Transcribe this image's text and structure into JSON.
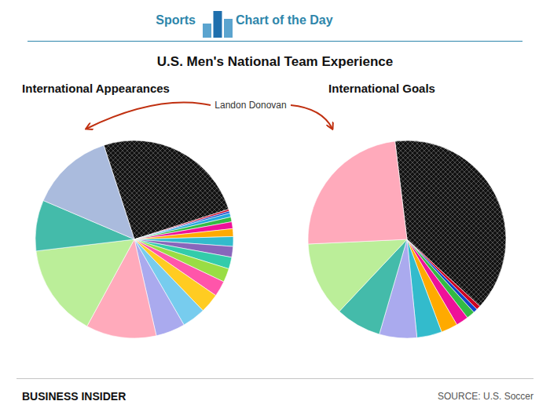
{
  "title": "U.S. Men's National Team Experience",
  "header": [
    "Sports",
    "Chart of the Day"
  ],
  "annotation": "Landon Donovan",
  "brand": "BUSINESS INSIDER",
  "source": "SOURCE: U.S. Soccer",
  "chart_data": [
    {
      "type": "pie",
      "title": "International Appearances",
      "values": [
        157,
        2,
        2,
        4,
        5,
        7,
        8,
        10,
        11,
        12,
        14,
        16,
        20,
        24,
        30,
        72,
        95,
        52,
        85
      ],
      "colors": [
        "#111111",
        "#cc0022",
        "#1144cc",
        "#22aadd",
        "#33bb44",
        "#ee1199",
        "#ffaa00",
        "#33bbcc",
        "#8866bb",
        "#33ccaa",
        "#99dd44",
        "#ff55aa",
        "#ffcc22",
        "#77ccee",
        "#aaaaee",
        "#ffaabb",
        "#bbee99",
        "#44bbaa",
        "#aabbdd"
      ]
    },
    {
      "type": "pie",
      "title": "International Goals",
      "values": [
        57,
        1,
        1,
        2,
        3,
        4,
        6,
        9,
        11,
        18,
        35
      ],
      "colors": [
        "#111111",
        "#cc0022",
        "#1144cc",
        "#33bb44",
        "#ee1199",
        "#ffaa00",
        "#33bbcc",
        "#aaaaee",
        "#44bbaa",
        "#bbee99",
        "#ffaabb"
      ]
    }
  ]
}
